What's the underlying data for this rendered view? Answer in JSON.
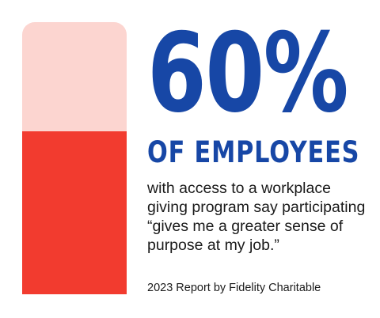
{
  "chart_data": {
    "type": "bar",
    "values": [
      60
    ],
    "ylim": [
      0,
      100
    ],
    "stat_label": "60%",
    "subject": "OF EMPLOYEES",
    "description": "with access to a workplace giving program say participating “gives me a greater sense of purpose at my job.”",
    "source": "2023 Report by Fidelity Charitable"
  },
  "colors": {
    "accent_blue": "#1747a6",
    "bar_filled": "#f23b2f",
    "bar_track": "#fcd5d0"
  }
}
